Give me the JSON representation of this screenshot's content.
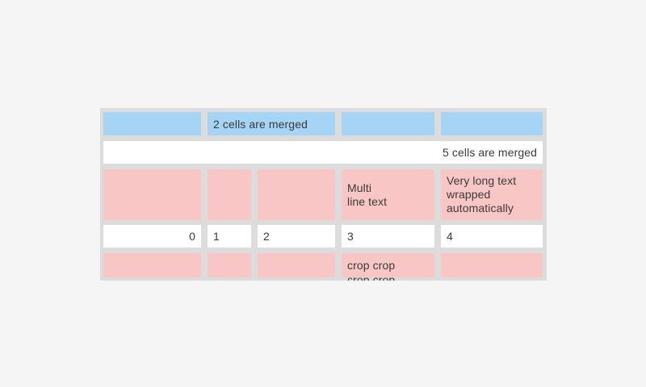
{
  "colors": {
    "page_bg": "#f5f5f5",
    "table_bg": "#dcdcdc",
    "blue": "#a6d4f5",
    "pink": "#f9c6c6",
    "white": "#ffffff",
    "text": "#3a3a3a"
  },
  "table": {
    "row1": {
      "merged_cell_label": "2 cells are merged"
    },
    "row2": {
      "merged_cell_label": "5 cells are merged"
    },
    "row3": {
      "multiline_label": "Multi\nline text",
      "wrapped_label": "Very long text wrapped automatically"
    },
    "row4": {
      "values": [
        "0",
        "1",
        "2",
        "3",
        "4"
      ]
    },
    "row5": {
      "crop_label": "crop crop crop crop crop crop"
    }
  }
}
